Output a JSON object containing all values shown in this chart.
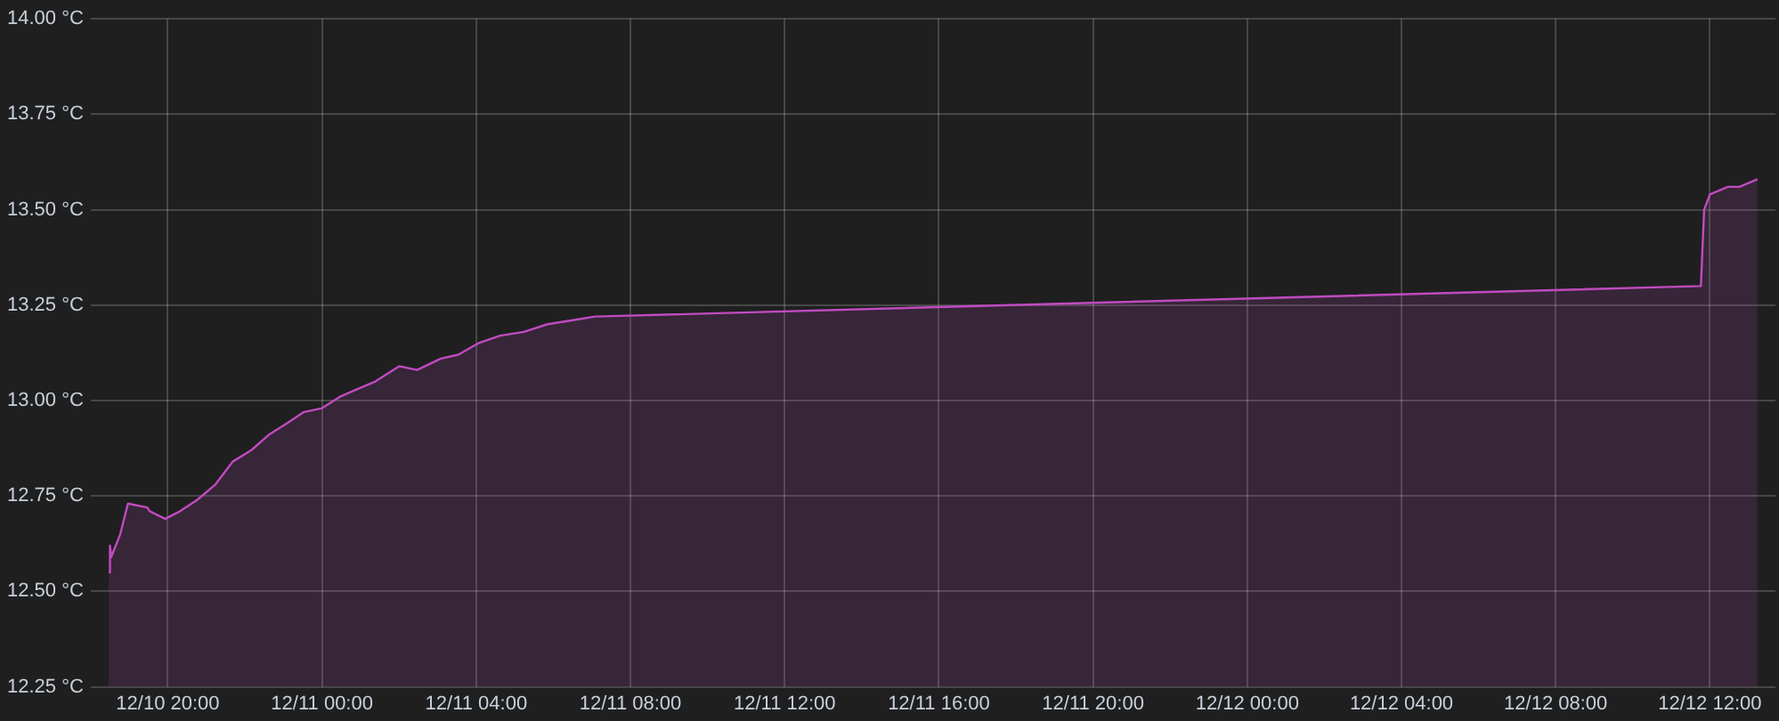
{
  "chart_data": {
    "type": "area",
    "x": [
      "--12-10T18:28",
      "--12-10T18:30",
      "--12-10T18:32",
      "--12-10T18:46",
      "--12-10T18:58",
      "--12-10T19:28",
      "--12-10T19:32",
      "--12-10T19:56",
      "--12-10T20:19",
      "--12-10T20:46",
      "--12-10T21:14",
      "--12-10T21:41",
      "--12-10T22:10",
      "--12-10T22:37",
      "--12-10T23:05",
      "--12-10T23:32",
      "--12-11T00:00",
      "--12-11T00:28",
      "--12-11T00:55",
      "--12-11T01:23",
      "--12-11T02:00",
      "--12-11T02:28",
      "--12-11T03:05",
      "--12-11T03:32",
      "--12-11T04:03",
      "--12-11T04:37",
      "--12-11T05:14",
      "--12-11T05:51",
      "--12-11T06:28",
      "--12-11T07:05",
      "--12-12T11:46",
      "--12-12T11:51",
      "--12-12T12:00",
      "--12-12T12:28",
      "--12-12T12:46",
      "--12-12T13:14"
    ],
    "series": [
      {
        "color": "#c04bc0",
        "values": [
          12.55,
          12.62,
          12.59,
          12.65,
          12.73,
          12.72,
          12.71,
          12.69,
          12.71,
          12.74,
          12.78,
          12.84,
          12.87,
          12.91,
          12.94,
          12.97,
          12.98,
          13.01,
          13.03,
          13.05,
          13.09,
          13.08,
          13.11,
          13.12,
          13.15,
          13.17,
          13.18,
          13.2,
          13.21,
          13.22,
          13.3,
          13.5,
          13.54,
          13.56,
          13.56,
          13.58
        ]
      }
    ],
    "xlim": [
      "--12-10T18:00",
      "--12-12T13:42"
    ],
    "xticks": [
      {
        "value": "--12-10T20:00",
        "label": "12/10 20:00"
      },
      {
        "value": "--12-11T00:00",
        "label": "12/11 00:00"
      },
      {
        "value": "--12-11T04:00",
        "label": "12/11 04:00"
      },
      {
        "value": "--12-11T08:00",
        "label": "12/11 08:00"
      },
      {
        "value": "--12-11T12:00",
        "label": "12/11 12:00"
      },
      {
        "value": "--12-11T16:00",
        "label": "12/11 16:00"
      },
      {
        "value": "--12-11T20:00",
        "label": "12/11 20:00"
      },
      {
        "value": "--12-12T00:00",
        "label": "12/12 00:00"
      },
      {
        "value": "--12-12T04:00",
        "label": "12/12 04:00"
      },
      {
        "value": "--12-12T08:00",
        "label": "12/12 08:00"
      },
      {
        "value": "--12-12T12:00",
        "label": "12/12 12:00"
      }
    ],
    "ylim": [
      12.25,
      14
    ],
    "yticks": [
      {
        "value": 12.25,
        "label": "12.25 °C"
      },
      {
        "value": 12.5,
        "label": "12.50 °C"
      },
      {
        "value": 12.75,
        "label": "12.75 °C"
      },
      {
        "value": 13,
        "label": "13.00 °C"
      },
      {
        "value": 13.25,
        "label": "13.25 °C"
      },
      {
        "value": 13.5,
        "label": "13.50 °C"
      },
      {
        "value": 13.75,
        "label": "13.75 °C"
      },
      {
        "value": 14,
        "label": "14.00 °C"
      }
    ],
    "grid": true,
    "legend": false,
    "marker": "none",
    "line_style": "solid"
  }
}
